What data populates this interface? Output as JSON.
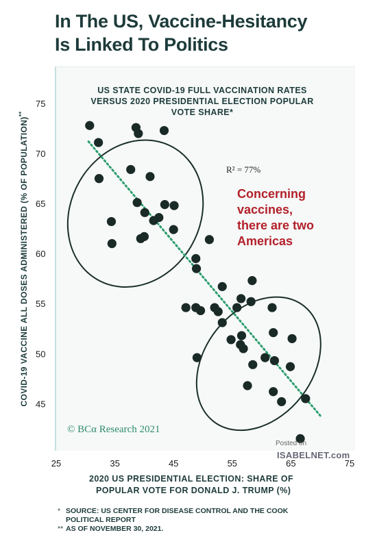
{
  "headline": [
    "In The US, Vaccine-Hesitancy",
    "Is Linked To Politics"
  ],
  "annotation": {
    "r_squared": "R² = 77%",
    "note": [
      "Concerning",
      "vaccines,",
      "there are two",
      "Americas"
    ]
  },
  "watermark": "© BCα Research 2021",
  "posted_on": "Posted on",
  "isabelnet": "ISABELNET.com",
  "footnotes": [
    {
      "mark": "*",
      "lines": [
        "SOURCE: US CENTER FOR DISEASE CONTROL AND THE COOK",
        "POLITICAL REPORT"
      ]
    },
    {
      "mark": "**",
      "lines": [
        "AS OF NOVEMBER 30, 2021."
      ]
    }
  ],
  "colors": {
    "dots": "#1a2a26",
    "trend": "#2e9d6e",
    "ellipse": "#1b2e2a",
    "annotation": "#b3202a",
    "title": "#1d3b3a"
  },
  "chart_data": {
    "type": "scatter",
    "title": [
      "US STATE COVID-19 FULL VACCINATION RATES",
      "VERSUS 2020 PRESIDENTIAL ELECTION POPULAR",
      "VOTE SHARE*"
    ],
    "xlabel": [
      "2020 US PRESIDENTIAL ELECTION: SHARE OF",
      "POPULAR VOTE FOR DONALD J. TRUMP (%)"
    ],
    "ylabel": "COVID-19 VACCINE ALL DOSES ADMINISTERED (% OF POPULATION)",
    "ylabel_suffix": "**",
    "xlim": [
      25,
      75
    ],
    "ylim": [
      40.5,
      78.5
    ],
    "x_ticks": [
      25,
      35,
      45,
      55,
      65,
      75
    ],
    "y_ticks": [
      45,
      50,
      55,
      60,
      65,
      70,
      75
    ],
    "grid": false,
    "trendline": {
      "x": [
        30.5,
        70.0
      ],
      "y": [
        71.2,
        43.8
      ]
    },
    "clusters": [
      {
        "cx": 38.5,
        "cy": 64.0,
        "rx": 13.0,
        "ry": 11.0,
        "angle": -60
      },
      {
        "cx": 59.5,
        "cy": 49.0,
        "rx": 12.5,
        "ry": 9.2,
        "angle": -52
      }
    ],
    "points": [
      {
        "x": 30.7,
        "y": 72.8
      },
      {
        "x": 32.2,
        "y": 71.1
      },
      {
        "x": 32.3,
        "y": 67.5
      },
      {
        "x": 34.4,
        "y": 63.2
      },
      {
        "x": 34.5,
        "y": 61.0
      },
      {
        "x": 37.7,
        "y": 68.4
      },
      {
        "x": 38.6,
        "y": 72.6
      },
      {
        "x": 39.0,
        "y": 72.0
      },
      {
        "x": 38.8,
        "y": 65.1
      },
      {
        "x": 39.4,
        "y": 61.5
      },
      {
        "x": 40.0,
        "y": 61.7
      },
      {
        "x": 40.1,
        "y": 64.1
      },
      {
        "x": 41.0,
        "y": 67.7
      },
      {
        "x": 41.6,
        "y": 63.3
      },
      {
        "x": 42.5,
        "y": 63.6
      },
      {
        "x": 43.4,
        "y": 72.3
      },
      {
        "x": 43.5,
        "y": 64.9
      },
      {
        "x": 45.1,
        "y": 64.8
      },
      {
        "x": 45.0,
        "y": 62.4
      },
      {
        "x": 51.1,
        "y": 61.4
      },
      {
        "x": 48.8,
        "y": 59.5
      },
      {
        "x": 48.9,
        "y": 58.5
      },
      {
        "x": 47.1,
        "y": 54.6
      },
      {
        "x": 48.8,
        "y": 54.6
      },
      {
        "x": 49.6,
        "y": 54.3
      },
      {
        "x": 49.0,
        "y": 49.6
      },
      {
        "x": 52.0,
        "y": 54.6
      },
      {
        "x": 52.6,
        "y": 54.2
      },
      {
        "x": 53.3,
        "y": 56.7
      },
      {
        "x": 53.3,
        "y": 53.1
      },
      {
        "x": 54.8,
        "y": 51.4
      },
      {
        "x": 55.8,
        "y": 54.6
      },
      {
        "x": 56.6,
        "y": 51.8
      },
      {
        "x": 56.4,
        "y": 50.9
      },
      {
        "x": 56.9,
        "y": 50.5
      },
      {
        "x": 56.5,
        "y": 55.5
      },
      {
        "x": 57.6,
        "y": 46.8
      },
      {
        "x": 58.2,
        "y": 55.2
      },
      {
        "x": 58.4,
        "y": 57.3
      },
      {
        "x": 58.5,
        "y": 48.9
      },
      {
        "x": 60.6,
        "y": 49.6
      },
      {
        "x": 61.8,
        "y": 54.6
      },
      {
        "x": 62.0,
        "y": 52.1
      },
      {
        "x": 62.0,
        "y": 46.2
      },
      {
        "x": 62.2,
        "y": 49.3
      },
      {
        "x": 63.4,
        "y": 45.2
      },
      {
        "x": 64.9,
        "y": 48.7
      },
      {
        "x": 65.2,
        "y": 51.5
      },
      {
        "x": 66.6,
        "y": 41.5
      },
      {
        "x": 67.5,
        "y": 45.5
      }
    ]
  }
}
